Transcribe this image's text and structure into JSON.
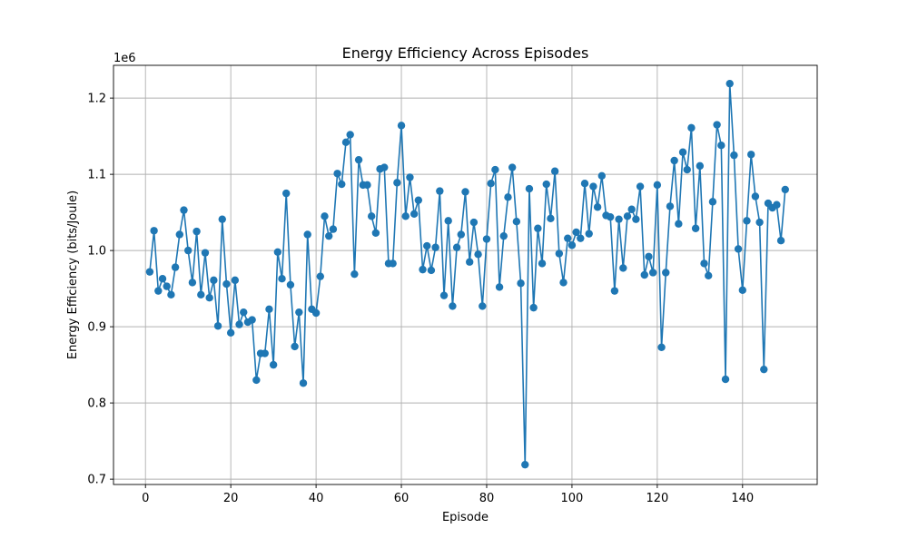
{
  "chart_data": {
    "type": "line",
    "title": "Energy Efficiency Across Episodes",
    "xlabel": "Episode",
    "ylabel": "Energy Efficiency (bits/Joule)",
    "y_offset_label": "1e6",
    "y_scale_factor": 1000000,
    "xlim": [
      -7.5,
      157.5
    ],
    "ylim": [
      693000,
      1243000
    ],
    "x_ticks": [
      0,
      20,
      40,
      60,
      80,
      100,
      120,
      140
    ],
    "x_tick_labels": [
      "0",
      "20",
      "40",
      "60",
      "80",
      "100",
      "120",
      "140"
    ],
    "y_ticks": [
      700000,
      800000,
      900000,
      1000000,
      1100000,
      1200000
    ],
    "y_tick_labels": [
      "0.7",
      "0.8",
      "0.9",
      "1.0",
      "1.1",
      "1.2"
    ],
    "grid": true,
    "marker": "circle",
    "colors": {
      "series": "#1f77b4"
    },
    "series": [
      {
        "x": [
          1,
          2,
          3,
          4,
          5,
          6,
          7,
          8,
          9,
          10,
          11,
          12,
          13,
          14,
          15,
          16,
          17,
          18,
          19,
          20,
          21,
          22,
          23,
          24,
          25,
          26,
          27,
          28,
          29,
          30,
          31,
          32,
          33,
          34,
          35,
          36,
          37,
          38,
          39,
          40,
          41,
          42,
          43,
          44,
          45,
          46,
          47,
          48,
          49,
          50,
          51,
          52,
          53,
          54,
          55,
          56,
          57,
          58,
          59,
          60,
          61,
          62,
          63,
          64,
          65,
          66,
          67,
          68,
          69,
          70,
          71,
          72,
          73,
          74,
          75,
          76,
          77,
          78,
          79,
          80,
          81,
          82,
          83,
          84,
          85,
          86,
          87,
          88,
          89,
          90,
          91,
          92,
          93,
          94,
          95,
          96,
          97,
          98,
          99,
          100,
          101,
          102,
          103,
          104,
          105,
          106,
          107,
          108,
          109,
          110,
          111,
          112,
          113,
          114,
          115,
          116,
          117,
          118,
          119,
          120,
          121,
          122,
          123,
          124,
          125,
          126,
          127,
          128,
          129,
          130,
          131,
          132,
          133,
          134,
          135,
          136,
          137,
          138,
          139,
          140,
          141,
          142,
          143,
          144,
          145,
          146,
          147,
          148,
          149,
          150
        ],
        "values": [
          972000,
          1026000,
          947000,
          963000,
          953000,
          942000,
          978000,
          1021000,
          1053000,
          1000000,
          958000,
          1025000,
          942000,
          997000,
          938000,
          961000,
          901000,
          1041000,
          956000,
          892000,
          961000,
          903000,
          919000,
          906000,
          909000,
          830000,
          865000,
          865000,
          923000,
          850000,
          998000,
          963000,
          1075000,
          955000,
          874000,
          919000,
          826000,
          1021000,
          923000,
          918000,
          966000,
          1045000,
          1019000,
          1028000,
          1101000,
          1087000,
          1142000,
          1152000,
          969000,
          1119000,
          1086000,
          1086000,
          1045000,
          1023000,
          1107000,
          1109000,
          983000,
          983000,
          1089000,
          1164000,
          1045000,
          1096000,
          1048000,
          1066000,
          975000,
          1006000,
          974000,
          1004000,
          1078000,
          941000,
          1039000,
          927000,
          1004000,
          1021000,
          1077000,
          985000,
          1037000,
          995000,
          927000,
          1015000,
          1088000,
          1106000,
          952000,
          1019000,
          1070000,
          1109000,
          1038000,
          957000,
          719000,
          1081000,
          925000,
          1029000,
          983000,
          1087000,
          1042000,
          1104000,
          996000,
          958000,
          1016000,
          1007000,
          1024000,
          1016000,
          1088000,
          1022000,
          1084000,
          1057000,
          1098000,
          1046000,
          1044000,
          947000,
          1041000,
          977000,
          1045000,
          1054000,
          1041000,
          1084000,
          968000,
          992000,
          971000,
          1086000,
          873000,
          971000,
          1058000,
          1118000,
          1035000,
          1129000,
          1106000,
          1161000,
          1029000,
          1111000,
          983000,
          967000,
          1064000,
          1165000,
          1138000,
          831000,
          1219000,
          1125000,
          1002000,
          948000,
          1039000,
          1126000,
          1071000,
          1037000,
          844000,
          1062000,
          1056000,
          1060000,
          1013000,
          1080000
        ]
      }
    ]
  }
}
